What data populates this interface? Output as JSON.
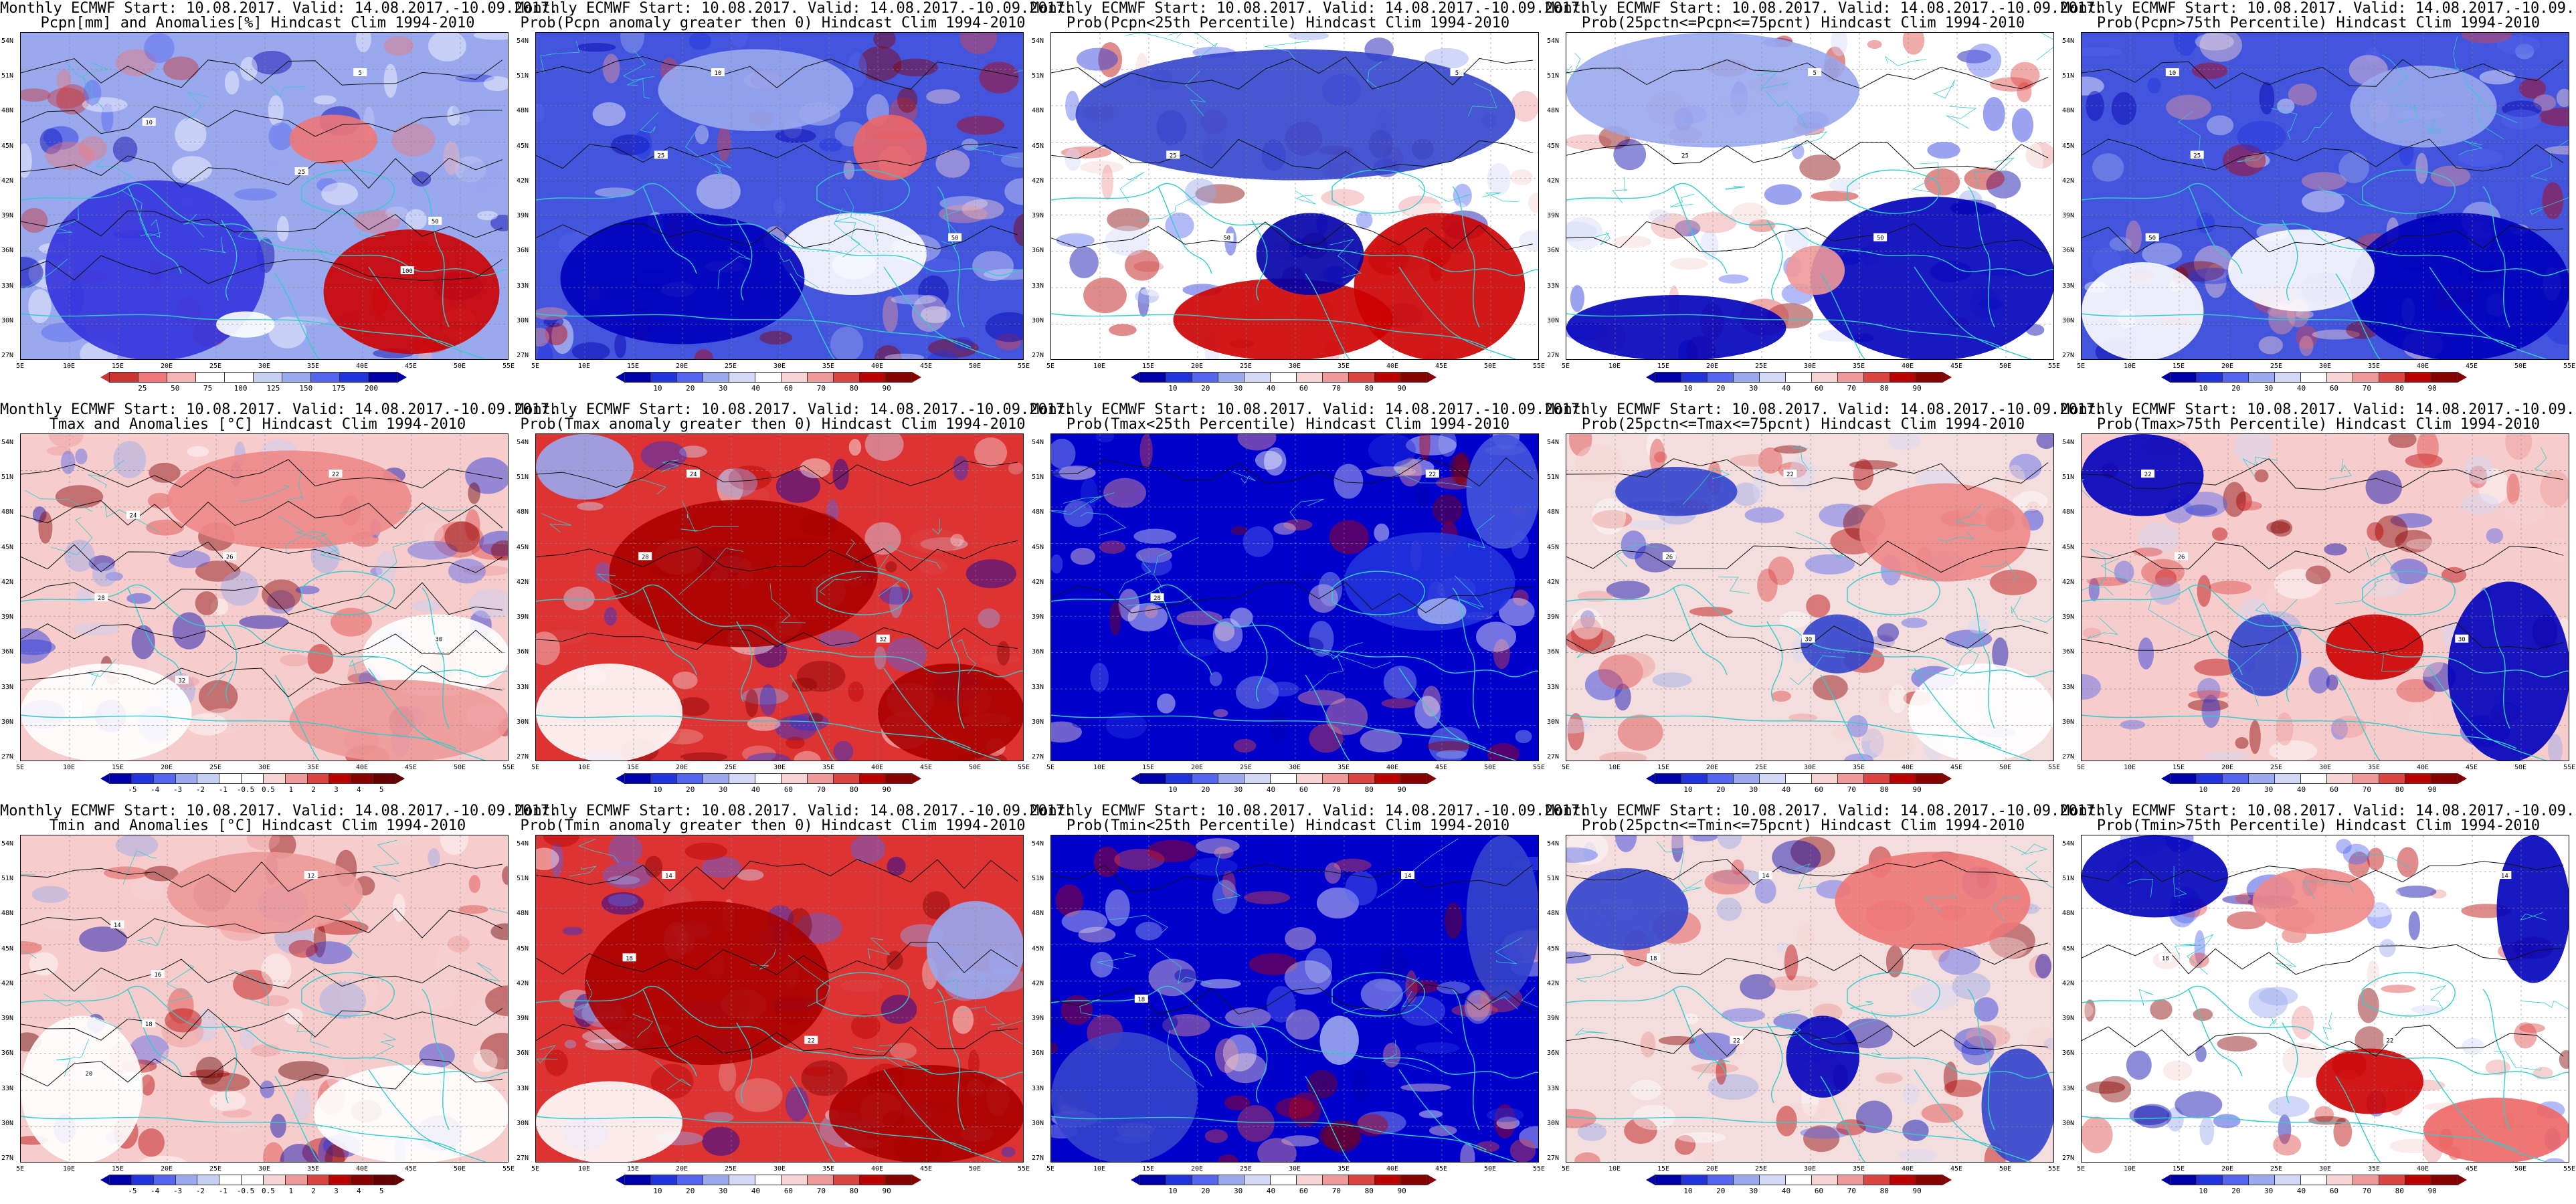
{
  "title_line1": "Monthly ECMWF Start: 10.08.2017. Valid: 14.08.2017.-10.09.2017.",
  "lat_labels": [
    "54N",
    "51N",
    "48N",
    "45N",
    "42N",
    "39N",
    "36N",
    "33N",
    "30N",
    "27N"
  ],
  "lon_labels": [
    "5E",
    "10E",
    "15E",
    "20E",
    "25E",
    "30E",
    "35E",
    "40E",
    "45E",
    "50E",
    "55E"
  ],
  "colors": {
    "coast": "#33cccc",
    "deep_blue": "#0000cc",
    "deep_red": "#bb0000",
    "white": "#ffffff"
  },
  "panels": [
    {
      "row": 0,
      "col": 0,
      "subtitle": "Pcpn[mm] and Anomalies[%] Hindcast Clim 1994-2010",
      "palette": "anom_pcp",
      "base": "#9aa8ee",
      "ticks": [
        "25",
        "50",
        "75",
        "100",
        "125",
        "150",
        "175",
        "200"
      ],
      "blobs": [
        {
          "c": "#cc0000",
          "l": 0.62,
          "t": 0.6,
          "w": 0.36,
          "h": 0.38
        },
        {
          "c": "#ee7777",
          "l": 0.55,
          "t": 0.25,
          "w": 0.18,
          "h": 0.15
        },
        {
          "c": "#3333dd",
          "l": 0.05,
          "t": 0.45,
          "w": 0.45,
          "h": 0.55
        },
        {
          "c": "#ffffff",
          "l": 0.4,
          "t": 0.85,
          "w": 0.12,
          "h": 0.08
        }
      ],
      "contours": [
        "5",
        "10",
        "25",
        "50",
        "100"
      ]
    },
    {
      "row": 0,
      "col": 1,
      "subtitle": "Prob(Pcpn anomaly greater then 0) Hindcast Clim 1994-2010",
      "palette": "prob",
      "base": "#4455dd",
      "ticks": [
        "10",
        "20",
        "30",
        "40",
        "60",
        "70",
        "80",
        "90"
      ],
      "blobs": [
        {
          "c": "#ee6666",
          "l": 0.65,
          "t": 0.25,
          "w": 0.15,
          "h": 0.2
        },
        {
          "c": "#ffffff",
          "l": 0.5,
          "t": 0.55,
          "w": 0.3,
          "h": 0.25
        },
        {
          "c": "#0000bb",
          "l": 0.05,
          "t": 0.55,
          "w": 0.5,
          "h": 0.4
        },
        {
          "c": "#9aa8ee",
          "l": 0.25,
          "t": 0.05,
          "w": 0.4,
          "h": 0.25
        }
      ],
      "contours": [
        "10",
        "25",
        "50"
      ]
    },
    {
      "row": 0,
      "col": 2,
      "subtitle": "Prob(Pcpn<25th Percentile) Hindcast Clim 1994-2010",
      "palette": "prob",
      "base": "#ffffff",
      "ticks": [
        "10",
        "20",
        "30",
        "40",
        "60",
        "70",
        "80",
        "90"
      ],
      "blobs": [
        {
          "c": "#cc0000",
          "l": 0.25,
          "t": 0.75,
          "w": 0.45,
          "h": 0.25
        },
        {
          "c": "#cc0000",
          "l": 0.62,
          "t": 0.55,
          "w": 0.35,
          "h": 0.45
        },
        {
          "c": "#3344cc",
          "l": 0.05,
          "t": 0.05,
          "w": 0.9,
          "h": 0.4
        },
        {
          "c": "#0000aa",
          "l": 0.42,
          "t": 0.55,
          "w": 0.22,
          "h": 0.25
        }
      ],
      "contours": [
        "5",
        "25",
        "50"
      ]
    },
    {
      "row": 0,
      "col": 3,
      "subtitle": "Prob(25pctn<=Pcpn<=75pcnt) Hindcast Clim 1994-2010",
      "palette": "prob",
      "base": "#ffffff",
      "ticks": [
        "10",
        "20",
        "30",
        "40",
        "60",
        "70",
        "80",
        "90"
      ],
      "blobs": [
        {
          "c": "#0000bb",
          "l": 0.5,
          "t": 0.5,
          "w": 0.5,
          "h": 0.5
        },
        {
          "c": "#0000bb",
          "l": 0.0,
          "t": 0.8,
          "w": 0.45,
          "h": 0.2
        },
        {
          "c": "#9aa8ee",
          "l": 0.0,
          "t": 0.0,
          "w": 0.6,
          "h": 0.35
        },
        {
          "c": "#ee9999",
          "l": 0.45,
          "t": 0.65,
          "w": 0.12,
          "h": 0.15
        }
      ],
      "contours": [
        "5",
        "25",
        "50"
      ]
    },
    {
      "row": 0,
      "col": 4,
      "subtitle": "Prob(Pcpn>75th Percentile) Hindcast Clim 1994-2010",
      "palette": "prob",
      "base": "#4455dd",
      "ticks": [
        "10",
        "20",
        "30",
        "40",
        "60",
        "70",
        "80",
        "90"
      ],
      "blobs": [
        {
          "c": "#0000bb",
          "l": 0.55,
          "t": 0.55,
          "w": 0.45,
          "h": 0.45
        },
        {
          "c": "#ffffff",
          "l": 0.3,
          "t": 0.6,
          "w": 0.3,
          "h": 0.25
        },
        {
          "c": "#ffffff",
          "l": 0.0,
          "t": 0.7,
          "w": 0.25,
          "h": 0.3
        },
        {
          "c": "#9aa8ee",
          "l": 0.55,
          "t": 0.1,
          "w": 0.3,
          "h": 0.25
        }
      ],
      "contours": [
        "10",
        "25",
        "50"
      ]
    },
    {
      "row": 1,
      "col": 0,
      "subtitle": "Tmax and Anomalies [°C] Hindcast Clim 1994-2010",
      "palette": "anom_t",
      "base": "#f6cccc",
      "ticks": [
        "-5",
        "-4",
        "-3",
        "-2",
        "-1",
        "-0.5",
        "0.5",
        "1",
        "2",
        "3",
        "4",
        "5"
      ],
      "blobs": [
        {
          "c": "#ee8888",
          "l": 0.3,
          "t": 0.05,
          "w": 0.5,
          "h": 0.3
        },
        {
          "c": "#ffffff",
          "l": 0.0,
          "t": 0.7,
          "w": 0.35,
          "h": 0.3
        },
        {
          "c": "#ffffff",
          "l": 0.7,
          "t": 0.55,
          "w": 0.3,
          "h": 0.25
        },
        {
          "c": "#ee9999",
          "l": 0.55,
          "t": 0.75,
          "w": 0.45,
          "h": 0.25
        }
      ],
      "contours": [
        "22",
        "24",
        "26",
        "28",
        "30",
        "32"
      ]
    },
    {
      "row": 1,
      "col": 1,
      "subtitle": "Prob(Tmax anomaly greater then 0) Hindcast Clim 1994-2010",
      "palette": "prob",
      "base": "#dd3333",
      "ticks": [
        "10",
        "20",
        "30",
        "40",
        "60",
        "70",
        "80",
        "90"
      ],
      "blobs": [
        {
          "c": "#aa0000",
          "l": 0.15,
          "t": 0.2,
          "w": 0.55,
          "h": 0.45
        },
        {
          "c": "#aa0000",
          "l": 0.7,
          "t": 0.7,
          "w": 0.3,
          "h": 0.3
        },
        {
          "c": "#ffffff",
          "l": 0.0,
          "t": 0.7,
          "w": 0.3,
          "h": 0.3
        },
        {
          "c": "#9aa8ee",
          "l": 0.0,
          "t": 0.0,
          "w": 0.2,
          "h": 0.2
        }
      ],
      "contours": [
        "24",
        "28",
        "32"
      ]
    },
    {
      "row": 1,
      "col": 2,
      "subtitle": "Prob(Tmax<25th Percentile) Hindcast Clim 1994-2010",
      "palette": "prob",
      "base": "#0000cc",
      "ticks": [
        "10",
        "20",
        "30",
        "40",
        "60",
        "70",
        "80",
        "90"
      ],
      "blobs": [
        {
          "c": "#2233dd",
          "l": 0.6,
          "t": 0.3,
          "w": 0.35,
          "h": 0.3
        },
        {
          "c": "#4455dd",
          "l": 0.85,
          "t": 0.0,
          "w": 0.15,
          "h": 0.35
        },
        {
          "c": "#9aa8ee",
          "l": 0.75,
          "t": 0.5,
          "w": 0.1,
          "h": 0.08
        }
      ],
      "contours": [
        "22",
        "28"
      ]
    },
    {
      "row": 1,
      "col": 3,
      "subtitle": "Prob(25pctn<=Tmax<=75pcnt) Hindcast Clim 1994-2010",
      "palette": "prob",
      "base": "#f4dddd",
      "ticks": [
        "10",
        "20",
        "30",
        "40",
        "60",
        "70",
        "80",
        "90"
      ],
      "blobs": [
        {
          "c": "#3344cc",
          "l": 0.1,
          "t": 0.1,
          "w": 0.25,
          "h": 0.15
        },
        {
          "c": "#ee8888",
          "l": 0.6,
          "t": 0.15,
          "w": 0.35,
          "h": 0.3
        },
        {
          "c": "#3344cc",
          "l": 0.48,
          "t": 0.55,
          "w": 0.15,
          "h": 0.18
        },
        {
          "c": "#ffffff",
          "l": 0.7,
          "t": 0.7,
          "w": 0.3,
          "h": 0.3
        }
      ],
      "contours": [
        "22",
        "26",
        "30"
      ]
    },
    {
      "row": 1,
      "col": 4,
      "subtitle": "Prob(Tmax>75th Percentile) Hindcast Clim 1994-2010",
      "palette": "prob",
      "base": "#f6cccc",
      "ticks": [
        "10",
        "20",
        "30",
        "40",
        "60",
        "70",
        "80",
        "90"
      ],
      "blobs": [
        {
          "c": "#0000bb",
          "l": 0.0,
          "t": 0.0,
          "w": 0.25,
          "h": 0.25
        },
        {
          "c": "#0000bb",
          "l": 0.75,
          "t": 0.45,
          "w": 0.25,
          "h": 0.55
        },
        {
          "c": "#cc0000",
          "l": 0.5,
          "t": 0.55,
          "w": 0.2,
          "h": 0.2
        },
        {
          "c": "#3344cc",
          "l": 0.3,
          "t": 0.55,
          "w": 0.15,
          "h": 0.25
        }
      ],
      "contours": [
        "22",
        "26",
        "30"
      ]
    },
    {
      "row": 2,
      "col": 0,
      "subtitle": "Tmin and Anomalies [°C] Hindcast Clim 1994-2010",
      "palette": "anom_t",
      "base": "#f6cccc",
      "ticks": [
        "-5",
        "-4",
        "-3",
        "-2",
        "-1",
        "-0.5",
        "0.5",
        "1",
        "2",
        "3",
        "4",
        "5"
      ],
      "blobs": [
        {
          "c": "#ee9999",
          "l": 0.3,
          "t": 0.05,
          "w": 0.4,
          "h": 0.25
        },
        {
          "c": "#ffffff",
          "l": 0.0,
          "t": 0.55,
          "w": 0.25,
          "h": 0.45
        },
        {
          "c": "#ffffff",
          "l": 0.6,
          "t": 0.7,
          "w": 0.4,
          "h": 0.3
        }
      ],
      "contours": [
        "12",
        "14",
        "16",
        "18",
        "20"
      ]
    },
    {
      "row": 2,
      "col": 1,
      "subtitle": "Prob(Tmin anomaly greater then 0) Hindcast Clim 1994-2010",
      "palette": "prob",
      "base": "#dd3333",
      "ticks": [
        "10",
        "20",
        "30",
        "40",
        "60",
        "70",
        "80",
        "90"
      ],
      "blobs": [
        {
          "c": "#aa0000",
          "l": 0.1,
          "t": 0.2,
          "w": 0.5,
          "h": 0.5
        },
        {
          "c": "#aa0000",
          "l": 0.6,
          "t": 0.7,
          "w": 0.4,
          "h": 0.3
        },
        {
          "c": "#ffffff",
          "l": 0.0,
          "t": 0.75,
          "w": 0.3,
          "h": 0.25
        },
        {
          "c": "#9aa8ee",
          "l": 0.8,
          "t": 0.2,
          "w": 0.2,
          "h": 0.3
        }
      ],
      "contours": [
        "14",
        "18",
        "22"
      ]
    },
    {
      "row": 2,
      "col": 2,
      "subtitle": "Prob(Tmin<25th Percentile) Hindcast Clim 1994-2010",
      "palette": "prob",
      "base": "#0000cc",
      "ticks": [
        "10",
        "20",
        "30",
        "40",
        "60",
        "70",
        "80",
        "90"
      ],
      "blobs": [
        {
          "c": "#3344cc",
          "l": 0.0,
          "t": 0.6,
          "w": 0.3,
          "h": 0.4
        },
        {
          "c": "#3344cc",
          "l": 0.85,
          "t": 0.0,
          "w": 0.15,
          "h": 0.5
        },
        {
          "c": "#9aa8ee",
          "l": 0.55,
          "t": 0.55,
          "w": 0.08,
          "h": 0.15
        }
      ],
      "contours": [
        "14",
        "18"
      ]
    },
    {
      "row": 2,
      "col": 3,
      "subtitle": "Prob(25pctn<=Tmin<=75pcnt) Hindcast Clim 1994-2010",
      "palette": "prob",
      "base": "#f4dddd",
      "ticks": [
        "10",
        "20",
        "30",
        "40",
        "60",
        "70",
        "80",
        "90"
      ],
      "blobs": [
        {
          "c": "#3344cc",
          "l": 0.0,
          "t": 0.1,
          "w": 0.25,
          "h": 0.25
        },
        {
          "c": "#ee7777",
          "l": 0.55,
          "t": 0.05,
          "w": 0.4,
          "h": 0.3
        },
        {
          "c": "#0000bb",
          "l": 0.45,
          "t": 0.55,
          "w": 0.15,
          "h": 0.25
        },
        {
          "c": "#3344cc",
          "l": 0.85,
          "t": 0.65,
          "w": 0.15,
          "h": 0.35
        }
      ],
      "contours": [
        "14",
        "18",
        "22"
      ]
    },
    {
      "row": 2,
      "col": 4,
      "subtitle": "Prob(Tmin>75th Percentile) Hindcast Clim 1994-2010",
      "palette": "prob",
      "base": "#ffffff",
      "ticks": [
        "10",
        "20",
        "30",
        "40",
        "60",
        "70",
        "80",
        "90"
      ],
      "blobs": [
        {
          "c": "#0000bb",
          "l": 0.0,
          "t": 0.0,
          "w": 0.3,
          "h": 0.25
        },
        {
          "c": "#0000bb",
          "l": 0.85,
          "t": 0.0,
          "w": 0.15,
          "h": 0.45
        },
        {
          "c": "#ee8888",
          "l": 0.35,
          "t": 0.1,
          "w": 0.25,
          "h": 0.2
        },
        {
          "c": "#cc0000",
          "l": 0.48,
          "t": 0.65,
          "w": 0.22,
          "h": 0.2
        },
        {
          "c": "#ee6666",
          "l": 0.7,
          "t": 0.8,
          "w": 0.3,
          "h": 0.2
        }
      ],
      "contours": [
        "14",
        "18",
        "22"
      ]
    }
  ]
}
